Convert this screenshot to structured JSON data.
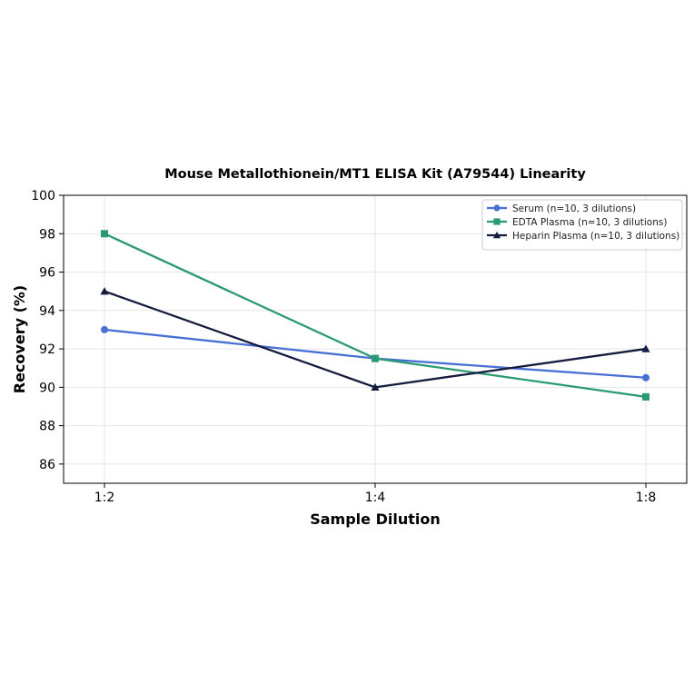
{
  "chart_data": {
    "type": "line",
    "title": "Mouse Metallothionein/MT1 ELISA Kit (A79544) Linearity",
    "xlabel": "Sample Dilution",
    "ylabel": "Recovery (%)",
    "categories": [
      "1:2",
      "1:4",
      "1:8"
    ],
    "ylim": [
      85,
      100
    ],
    "yticks": [
      86,
      88,
      90,
      92,
      94,
      96,
      98,
      100
    ],
    "grid": true,
    "legend_position": "top-right",
    "series": [
      {
        "name": "Serum (n=10, 3 dilutions)",
        "values": [
          93,
          91.5,
          90.5
        ],
        "color": "#4a6fd4",
        "marker": "circle"
      },
      {
        "name": "EDTA Plasma (n=10, 3 dilutions)",
        "values": [
          98,
          91.5,
          89.5
        ],
        "color": "#2a9a73",
        "marker": "square"
      },
      {
        "name": "Heparin Plasma (n=10, 3 dilutions)",
        "values": [
          95,
          90,
          92
        ],
        "color": "#131b3f",
        "marker": "triangle"
      }
    ]
  }
}
